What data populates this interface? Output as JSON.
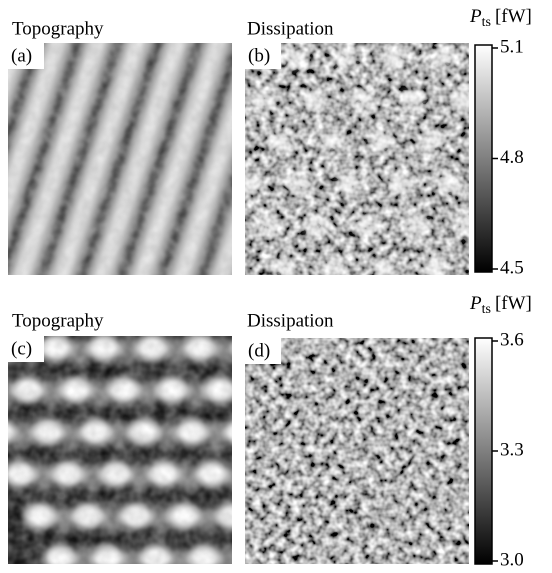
{
  "panels": [
    {
      "title": "Topography",
      "label": "(a)"
    },
    {
      "title": "Dissipation",
      "label": "(b)"
    },
    {
      "title": "Topography",
      "label": "(c)"
    },
    {
      "title": "Dissipation",
      "label": "(d)"
    }
  ],
  "colorbars": [
    {
      "quantity": "P",
      "subscript": "ts",
      "unit": "[fW]",
      "ticks": [
        5.1,
        4.8,
        4.5
      ]
    },
    {
      "quantity": "P",
      "subscript": "ts",
      "unit": "[fW]",
      "ticks": [
        3.6,
        3.3,
        {
          "value": 3,
          "label": "3.0"
        }
      ]
    }
  ]
}
